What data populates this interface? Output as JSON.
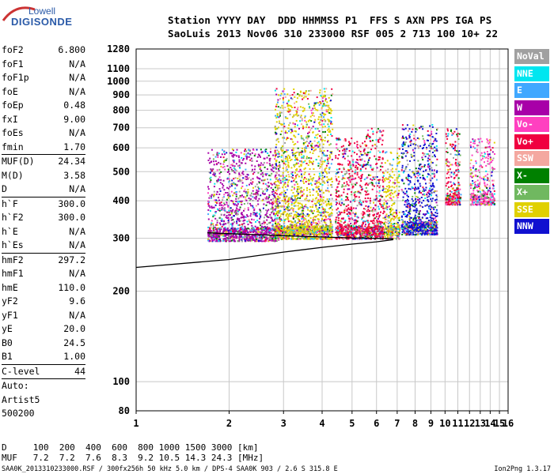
{
  "brand": {
    "line1": "Lowell",
    "line2": "DIGISONDE"
  },
  "header": {
    "line1": "Station YYYY DAY  DDD HHMMSS P1  FFS S AXN PPS IGA PS",
    "line2": "SaoLuis 2013 Nov06 310 233000 RSF 005 2 713 100 10+ 22"
  },
  "params": [
    {
      "label": "foF2",
      "value": "6.800"
    },
    {
      "label": "foF1",
      "value": "N/A"
    },
    {
      "label": "foF1p",
      "value": "N/A"
    },
    {
      "label": "foE",
      "value": "N/A"
    },
    {
      "label": "foEp",
      "value": "0.48"
    },
    {
      "label": "fxI",
      "value": "9.00"
    },
    {
      "label": "foEs",
      "value": "N/A"
    },
    {
      "label": "fmin",
      "value": "1.70"
    },
    {
      "sep": true
    },
    {
      "label": "MUF(D)",
      "value": "24.34"
    },
    {
      "label": "M(D)",
      "value": "3.58"
    },
    {
      "label": "D",
      "value": "N/A"
    },
    {
      "sep": true
    },
    {
      "label": "h`F",
      "value": "300.0"
    },
    {
      "label": "h`F2",
      "value": "300.0"
    },
    {
      "label": "h`E",
      "value": "N/A"
    },
    {
      "label": "h`Es",
      "value": "N/A"
    },
    {
      "sep": true
    },
    {
      "label": "hmF2",
      "value": "297.2"
    },
    {
      "label": "hmF1",
      "value": "N/A"
    },
    {
      "label": "hmE",
      "value": "110.0"
    },
    {
      "label": "yF2",
      "value": "9.6"
    },
    {
      "label": "yF1",
      "value": "N/A"
    },
    {
      "label": "yE",
      "value": "20.0"
    },
    {
      "label": "B0",
      "value": "24.5"
    },
    {
      "label": "B1",
      "value": "1.00"
    },
    {
      "sep": true
    },
    {
      "label": "C-level",
      "value": "44"
    },
    {
      "sep": true
    },
    {
      "text": "Auto:"
    },
    {
      "text": "Artist5"
    },
    {
      "text": "500200"
    }
  ],
  "legend": [
    {
      "label": "NoVal",
      "color": "#a0a0a0"
    },
    {
      "label": "NNE",
      "color": "#00e6f0"
    },
    {
      "label": "E",
      "color": "#40a8ff"
    },
    {
      "label": "W",
      "color": "#a800a8"
    },
    {
      "label": "Vo-",
      "color": "#ff40c0"
    },
    {
      "label": "Vo+",
      "color": "#f00040"
    },
    {
      "label": "SSW",
      "color": "#f4a8a0"
    },
    {
      "label": "X-",
      "color": "#008000"
    },
    {
      "label": "X+",
      "color": "#70b860"
    },
    {
      "label": "SSE",
      "color": "#e0d000"
    },
    {
      "label": "NNW",
      "color": "#1010d0"
    }
  ],
  "footer": {
    "line1": "D     100  200  400  600  800 1000 1500 3000 [km]",
    "line2": "MUF   7.2  7.2  7.6  8.3  9.2 10.5 14.3 24.3 [MHz]",
    "line3": "SAA0K_2013310233000.RSF / 300fx256h 50 kHz 5.0 km / DPS-4 SAA0K 903 / 2.6 S 315.8 E",
    "version": "Ion2Png 1.3.17"
  },
  "chart_data": {
    "type": "scatter",
    "xlim": [
      1,
      16
    ],
    "ylim": [
      80,
      1280
    ],
    "x_scale": "log",
    "y_scale": "log",
    "x_ticks": [
      1,
      2,
      3,
      4,
      5,
      6,
      7,
      8,
      9,
      10,
      11,
      12,
      13,
      14,
      15,
      16
    ],
    "y_ticks": [
      80,
      100,
      200,
      300,
      400,
      500,
      600,
      700,
      800,
      900,
      1000,
      1100,
      1280
    ],
    "grid": true,
    "clusters": [
      {
        "x": [
          1.7,
          2.9
        ],
        "y": [
          295,
          600
        ],
        "dominant": "W"
      },
      {
        "x": [
          2.8,
          4.3
        ],
        "y": [
          300,
          950
        ],
        "dominant": "SSE"
      },
      {
        "x": [
          4.4,
          5.5
        ],
        "y": [
          300,
          650
        ],
        "dominant": "Vo+"
      },
      {
        "x": [
          5.5,
          6.3
        ],
        "y": [
          300,
          700
        ],
        "dominant": "Vo+"
      },
      {
        "x": [
          6.3,
          7.1
        ],
        "y": [
          300,
          600
        ],
        "dominant": "SSE"
      },
      {
        "x": [
          7.2,
          9.4
        ],
        "y": [
          310,
          720
        ],
        "dominant": "NNW"
      },
      {
        "x": [
          10.0,
          11.2
        ],
        "y": [
          390,
          700
        ],
        "dominant": "Vo+"
      },
      {
        "x": [
          12.0,
          14.4
        ],
        "y": [
          390,
          650
        ],
        "dominant": "Vo-"
      }
    ],
    "traces": [
      {
        "name": "ordinary",
        "points": [
          [
            1.7,
            313
          ],
          [
            3,
            306
          ],
          [
            4,
            303
          ],
          [
            5,
            301
          ],
          [
            6,
            300
          ],
          [
            6.8,
            299
          ]
        ]
      },
      {
        "name": "profile",
        "points": [
          [
            1.0,
            240
          ],
          [
            2,
            255
          ],
          [
            3,
            270
          ],
          [
            4,
            280
          ],
          [
            5,
            287
          ],
          [
            6,
            292
          ],
          [
            6.8,
            297
          ]
        ]
      }
    ]
  }
}
